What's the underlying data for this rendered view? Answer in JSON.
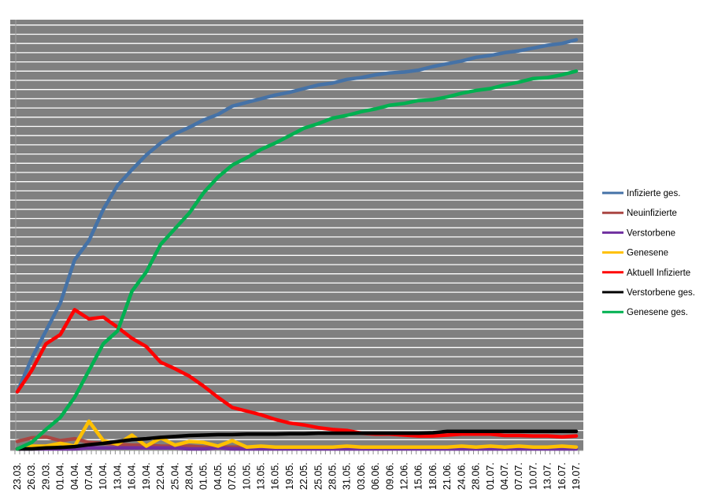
{
  "chart_data": {
    "type": "line",
    "title": "",
    "xlabel": "",
    "ylabel": "",
    "y_tick_labels_shown": false,
    "ylim": [
      0,
      47
    ],
    "y_units_note": "values estimated in gridline steps (no y-axis labels printed)",
    "grid": {
      "horizontal": true,
      "vertical": false,
      "color": "#ffffff"
    },
    "plot_background": "#808080",
    "legend_position": "right",
    "daily_ticks_between_labels": 3,
    "categories": [
      "23.03.",
      "26.03.",
      "29.03.",
      "01.04.",
      "04.04.",
      "07.04.",
      "10.04.",
      "13.04.",
      "16.04.",
      "19.04.",
      "22.04.",
      "25.04.",
      "28.04.",
      "01.05.",
      "04.05.",
      "07.05.",
      "10.05.",
      "13.05.",
      "16.05.",
      "19.05.",
      "22.05.",
      "25.05.",
      "28.05.",
      "31.05.",
      "03.06.",
      "06.06.",
      "09.06.",
      "12.06.",
      "15.06.",
      "18.06.",
      "21.06.",
      "24.06.",
      "28.06.",
      "01.07.",
      "04.07.",
      "07.07.",
      "10.07.",
      "13.07.",
      "16.07.",
      "19.07."
    ],
    "series": [
      {
        "name": "Infizierte ges.",
        "color": "#4572a7",
        "values": [
          6.2,
          9.8,
          12.8,
          15.8,
          20.5,
          22.6,
          26.0,
          28.6,
          30.3,
          31.9,
          33.2,
          34.2,
          34.9,
          35.7,
          36.3,
          37.2,
          37.6,
          38.0,
          38.4,
          38.7,
          39.1,
          39.5,
          39.7,
          40.1,
          40.3,
          40.6,
          40.8,
          40.9,
          41.1,
          41.5,
          41.8,
          42.1,
          42.5,
          42.7,
          43.0,
          43.2,
          43.5,
          43.8,
          44.0,
          44.4
        ]
      },
      {
        "name": "Neuinfizierte",
        "color": "#aa4643",
        "values": [
          0.8,
          1.2,
          1.3,
          0.9,
          1.1,
          0.7,
          0.6,
          0.5,
          0.4,
          0.4,
          0.3,
          0.3,
          0.3,
          0.2,
          0.2,
          0.2,
          0.2,
          0.1,
          0.1,
          0.1,
          0.1,
          0.1,
          0.1,
          0.1,
          0.1,
          0.1,
          0.1,
          0.1,
          0.1,
          0.1,
          0.1,
          0.1,
          0.1,
          0.1,
          0.1,
          0.1,
          0.1,
          0.1,
          0.1,
          0.1
        ]
      },
      {
        "name": "Verstorbene",
        "color": "#7030a0",
        "values": [
          0,
          0,
          0,
          0,
          0,
          0.1,
          0.1,
          0.1,
          0.1,
          0.1,
          0.1,
          0.1,
          0,
          0,
          0.1,
          0,
          0,
          0,
          0,
          0,
          0,
          0,
          0,
          0,
          0,
          0,
          0,
          0,
          0,
          0,
          0,
          0,
          0,
          0,
          0,
          0,
          0,
          0,
          0,
          0
        ]
      },
      {
        "name": "Genesene",
        "color": "#ffc000",
        "values": [
          0,
          0.3,
          0.3,
          0.6,
          0.3,
          3.0,
          0.9,
          0.5,
          1.5,
          0.3,
          1.2,
          0.4,
          0.8,
          0.7,
          0.3,
          0.9,
          0.2,
          0.3,
          0.2,
          0.2,
          0.2,
          0.2,
          0.2,
          0.3,
          0.2,
          0.2,
          0.2,
          0.2,
          0.2,
          0.2,
          0.2,
          0.3,
          0.2,
          0.3,
          0.2,
          0.3,
          0.2,
          0.2,
          0.3,
          0.2
        ]
      },
      {
        "name": "Aktuell Infizierte",
        "color": "#ff0000",
        "values": [
          6.2,
          8.5,
          11.4,
          12.4,
          15.1,
          14.1,
          14.3,
          13.2,
          12.0,
          11.1,
          9.4,
          8.7,
          7.9,
          6.8,
          5.6,
          4.5,
          4.1,
          3.7,
          3.2,
          2.8,
          2.6,
          2.3,
          2.1,
          2.0,
          1.7,
          1.6,
          1.6,
          1.5,
          1.4,
          1.4,
          1.5,
          1.6,
          1.6,
          1.6,
          1.45,
          1.45,
          1.4,
          1.4,
          1.3,
          1.4
        ]
      },
      {
        "name": "Verstorbene ges.",
        "color": "#000000",
        "values": [
          0,
          0,
          0.1,
          0.15,
          0.25,
          0.45,
          0.6,
          0.8,
          1.0,
          1.1,
          1.25,
          1.35,
          1.45,
          1.5,
          1.55,
          1.55,
          1.6,
          1.6,
          1.6,
          1.65,
          1.65,
          1.7,
          1.7,
          1.7,
          1.7,
          1.7,
          1.7,
          1.7,
          1.7,
          1.75,
          1.9,
          1.9,
          1.9,
          1.9,
          1.9,
          1.9,
          1.9,
          1.9,
          1.9,
          1.9
        ]
      },
      {
        "name": "Genesene ges.",
        "color": "#00b050",
        "values": [
          0,
          0.7,
          2.1,
          3.4,
          5.6,
          8.5,
          11.4,
          12.8,
          17.1,
          19.2,
          22.2,
          23.9,
          25.6,
          27.8,
          29.5,
          30.8,
          31.6,
          32.5,
          33.2,
          34.0,
          34.8,
          35.3,
          35.9,
          36.2,
          36.6,
          36.9,
          37.3,
          37.5,
          37.8,
          37.9,
          38.2,
          38.6,
          38.9,
          39.1,
          39.5,
          39.8,
          40.2,
          40.3,
          40.6,
          41.0
        ]
      }
    ]
  }
}
